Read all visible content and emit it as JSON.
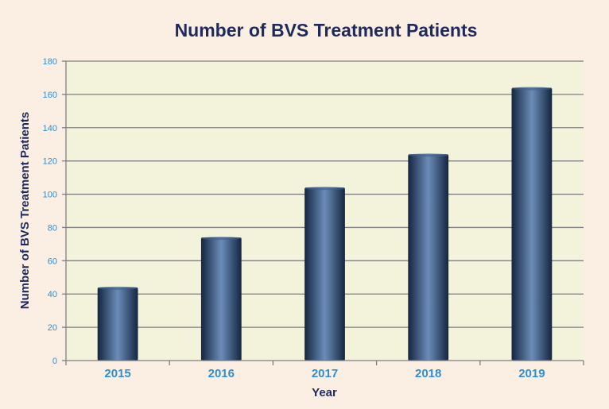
{
  "chart_data": {
    "type": "bar",
    "title": "Number of BVS Treatment Patients",
    "xlabel": "Year",
    "ylabel": "Number of BVS Treatment Patients",
    "categories": [
      "2015",
      "2016",
      "2017",
      "2018",
      "2019"
    ],
    "values": [
      44,
      74,
      104,
      124,
      164
    ],
    "ylim": [
      0,
      180
    ],
    "yticks": [
      0,
      20,
      40,
      60,
      80,
      100,
      120,
      140,
      160,
      180
    ],
    "grid": true,
    "legend": "none",
    "colors": {
      "background": "#fbeee3",
      "plot_background": "#f3f3dc",
      "bar_dark": "#142640",
      "bar_mid": "#3f6390",
      "bar_light": "#6b8cb8",
      "title": "#1f2a5c",
      "tick_label": "#2f8fd0",
      "grid": "#7f7f7f"
    }
  }
}
